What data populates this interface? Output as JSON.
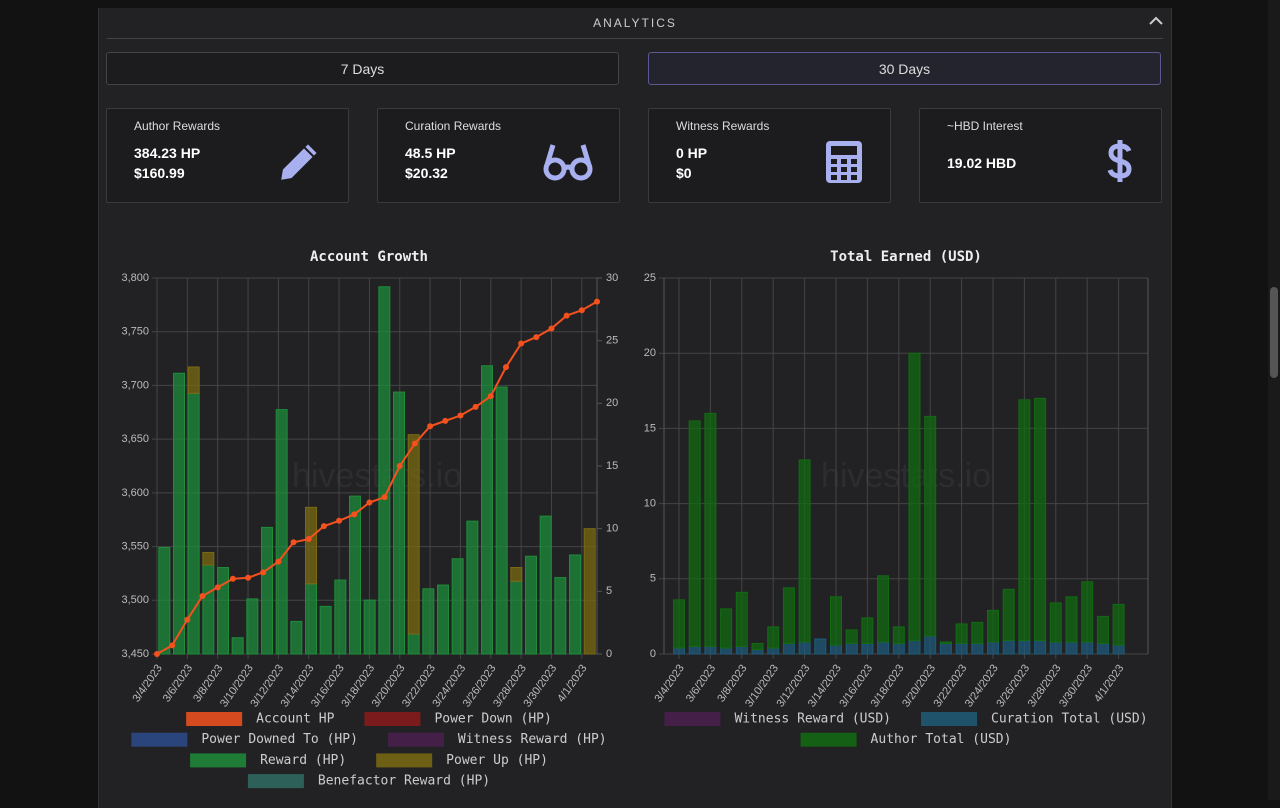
{
  "panel": {
    "title": "ANALYTICS"
  },
  "tabs": [
    "7 Days",
    "30 Days"
  ],
  "cards": [
    {
      "title": "Author Rewards",
      "lines": [
        "384.23 HP",
        "$160.99"
      ]
    },
    {
      "title": "Curation Rewards",
      "lines": [
        "48.5 HP",
        "$20.32"
      ]
    },
    {
      "title": "Witness Rewards",
      "lines": [
        "0 HP",
        "$0"
      ]
    },
    {
      "title": "~HBD Interest",
      "lines": [
        "19.02 HBD"
      ]
    }
  ],
  "chart_data": [
    {
      "type": "bar",
      "title": "Account Growth",
      "watermark": "hivestats.io",
      "stacked": true,
      "grid": true,
      "legend": "bottom",
      "categories": [
        "3/4/2023",
        null,
        "3/6/2023",
        null,
        "3/8/2023",
        null,
        "3/10/2023",
        null,
        "3/12/2023",
        null,
        "3/14/2023",
        null,
        "3/16/2023",
        null,
        "3/18/2023",
        null,
        "3/20/2023",
        null,
        "3/22/2023",
        null,
        "3/24/2023",
        null,
        "3/26/2023",
        null,
        "3/28/2023",
        null,
        "3/30/2023",
        null,
        "4/1/2023",
        null
      ],
      "ylim": [
        3450,
        3800
      ],
      "yticks": [
        {
          "value": 3450,
          "label": "3,450"
        },
        {
          "value": 3500,
          "label": "3,500"
        },
        {
          "value": 3550,
          "label": "3,550"
        },
        {
          "value": 3600,
          "label": "3,600"
        },
        {
          "value": 3650,
          "label": "3,650"
        },
        {
          "value": 3700,
          "label": "3,700"
        },
        {
          "value": 3750,
          "label": "3,750"
        },
        {
          "value": 3800,
          "label": "3,800"
        }
      ],
      "y2lim": [
        0,
        30
      ],
      "y2ticks": [
        0,
        5,
        10,
        15,
        20,
        25,
        30
      ],
      "series": [
        {
          "name": "Account HP",
          "color": "#f4511e",
          "type": "line",
          "axis": "y",
          "values": [
            3450,
            3458,
            3482,
            3504,
            3512,
            3520,
            3521,
            3526,
            3536,
            3554,
            3557,
            3569,
            3574,
            3580,
            3591,
            3596,
            3625,
            3646,
            3662,
            3667,
            3672,
            3680,
            3690,
            3717,
            3739,
            3745,
            3753,
            3765,
            3770,
            3778
          ]
        },
        {
          "name": "Power Down (HP)",
          "color": "#8b1a1a"
        },
        {
          "name": "Power Downed To (HP)",
          "color": "#2c4a8c"
        },
        {
          "name": "Witness Reward (HP)",
          "color": "#4a2050"
        },
        {
          "name": "Reward (HP)",
          "color": "#1e8c3a",
          "axis": "y2",
          "values": [
            8.5,
            22.4,
            20.8,
            7.1,
            6.9,
            1.3,
            4.4,
            10.1,
            19.5,
            2.6,
            5.6,
            3.8,
            5.9,
            12.6,
            4.3,
            29.3,
            20.9,
            1.6,
            5.2,
            5.5,
            7.6,
            10.6,
            23.0,
            21.3,
            5.8,
            7.8,
            11.0,
            6.1,
            7.9,
            0
          ]
        },
        {
          "name": "Power Up (HP)",
          "color": "#7a6a12",
          "axis": "y2",
          "values": [
            0,
            0,
            2.1,
            1.0,
            0,
            0,
            0,
            0,
            0,
            0,
            6.1,
            0,
            0,
            0,
            0,
            0,
            0,
            15.9,
            0,
            0,
            0,
            0,
            0,
            0,
            1.1,
            0,
            0,
            0,
            0,
            10.0
          ]
        },
        {
          "name": "Benefactor Reward (HP)",
          "color": "#2f6b63"
        }
      ]
    },
    {
      "type": "bar",
      "title": "Total Earned (USD)",
      "watermark": "hivestats.io",
      "stacked": true,
      "grid": true,
      "legend": "bottom",
      "categories": [
        "3/4/2023",
        null,
        "3/6/2023",
        null,
        "3/8/2023",
        null,
        "3/10/2023",
        null,
        "3/12/2023",
        null,
        "3/14/2023",
        null,
        "3/16/2023",
        null,
        "3/18/2023",
        null,
        "3/20/2023",
        null,
        "3/22/2023",
        null,
        "3/24/2023",
        null,
        "3/26/2023",
        null,
        "3/28/2023",
        null,
        "3/30/2023",
        null,
        "4/1/2023"
      ],
      "ylim": [
        0,
        25
      ],
      "yticks": [
        0,
        5,
        10,
        15,
        20,
        25
      ],
      "series": [
        {
          "name": "Witness Reward (USD)",
          "color": "#4a2050"
        },
        {
          "name": "Curation Total (USD)",
          "color": "#1e5a78",
          "values": [
            0.4,
            0.5,
            0.5,
            0.4,
            0.5,
            0.3,
            0.4,
            0.7,
            0.8,
            1.0,
            0.6,
            0.7,
            0.7,
            0.8,
            0.7,
            0.9,
            1.2,
            0.7,
            0.7,
            0.7,
            0.8,
            0.9,
            0.9,
            0.9,
            0.8,
            0.8,
            0.8,
            0.7,
            0.6
          ]
        },
        {
          "name": "Author Total (USD)",
          "color": "#126b12",
          "values": [
            3.2,
            15.0,
            15.5,
            2.6,
            3.6,
            0.4,
            1.4,
            3.7,
            12.1,
            0.0,
            3.2,
            0.9,
            1.7,
            4.4,
            1.1,
            19.1,
            14.6,
            0.1,
            1.3,
            1.4,
            2.1,
            3.4,
            16.0,
            16.1,
            2.6,
            3.0,
            4.0,
            1.8,
            2.7
          ]
        }
      ]
    }
  ]
}
